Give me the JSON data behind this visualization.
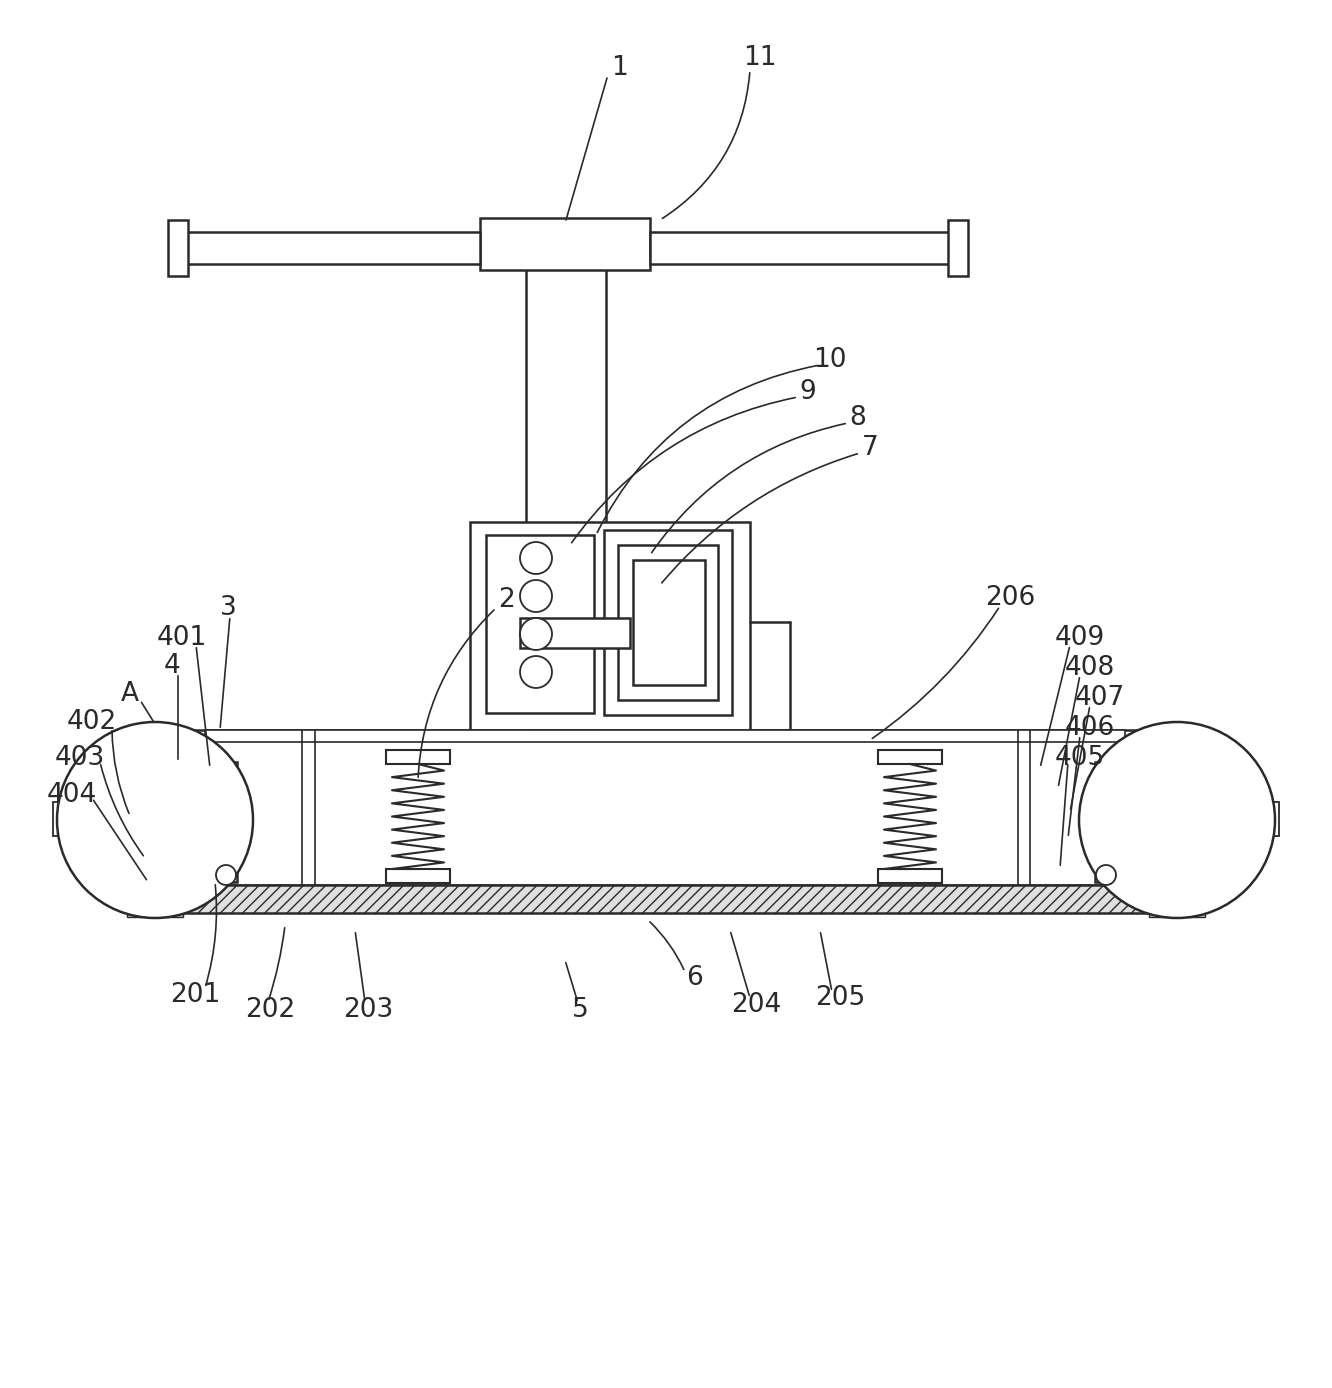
{
  "bg_color": "#ffffff",
  "line_color": "#2a2a2a",
  "lw": 1.8,
  "lw_thin": 1.2,
  "fig_width": 13.32,
  "fig_height": 13.88
}
